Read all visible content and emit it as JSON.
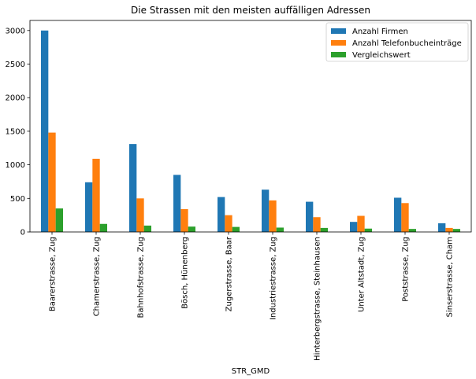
{
  "chart_data": {
    "type": "bar",
    "title": "Die Strassen mit den meisten auffälligen Adressen",
    "xlabel": "STR_GMD",
    "ylabel": "",
    "ylim": [
      0,
      3150
    ],
    "yticks": [
      0,
      500,
      1000,
      1500,
      2000,
      2500,
      3000
    ],
    "grid": false,
    "legend_position": "top-right",
    "categories": [
      "Baarerstrasse, Zug",
      "Chamerstrasse, Zug",
      "Bahnhofstrasse, Zug",
      "Bösch, Hünenberg",
      "Zugerstrasse, Baar",
      "Industriestrasse, Zug",
      "Hinterbergstrasse, Steinhausen",
      "Unter Altstadt, Zug",
      "Poststrasse, Zug",
      "Sinserstrasse, Cham"
    ],
    "series": [
      {
        "name": "Anzahl Firmen",
        "color": "#1f77b4",
        "values": [
          3000,
          740,
          1310,
          850,
          520,
          630,
          450,
          150,
          510,
          130
        ]
      },
      {
        "name": "Anzahl Telefonbucheinträge",
        "color": "#ff7f0e",
        "values": [
          1480,
          1090,
          500,
          340,
          250,
          470,
          220,
          240,
          430,
          60
        ]
      },
      {
        "name": "Vergleichswert",
        "color": "#2ca02c",
        "values": [
          350,
          120,
          95,
          80,
          75,
          65,
          60,
          50,
          45,
          45
        ]
      }
    ]
  }
}
